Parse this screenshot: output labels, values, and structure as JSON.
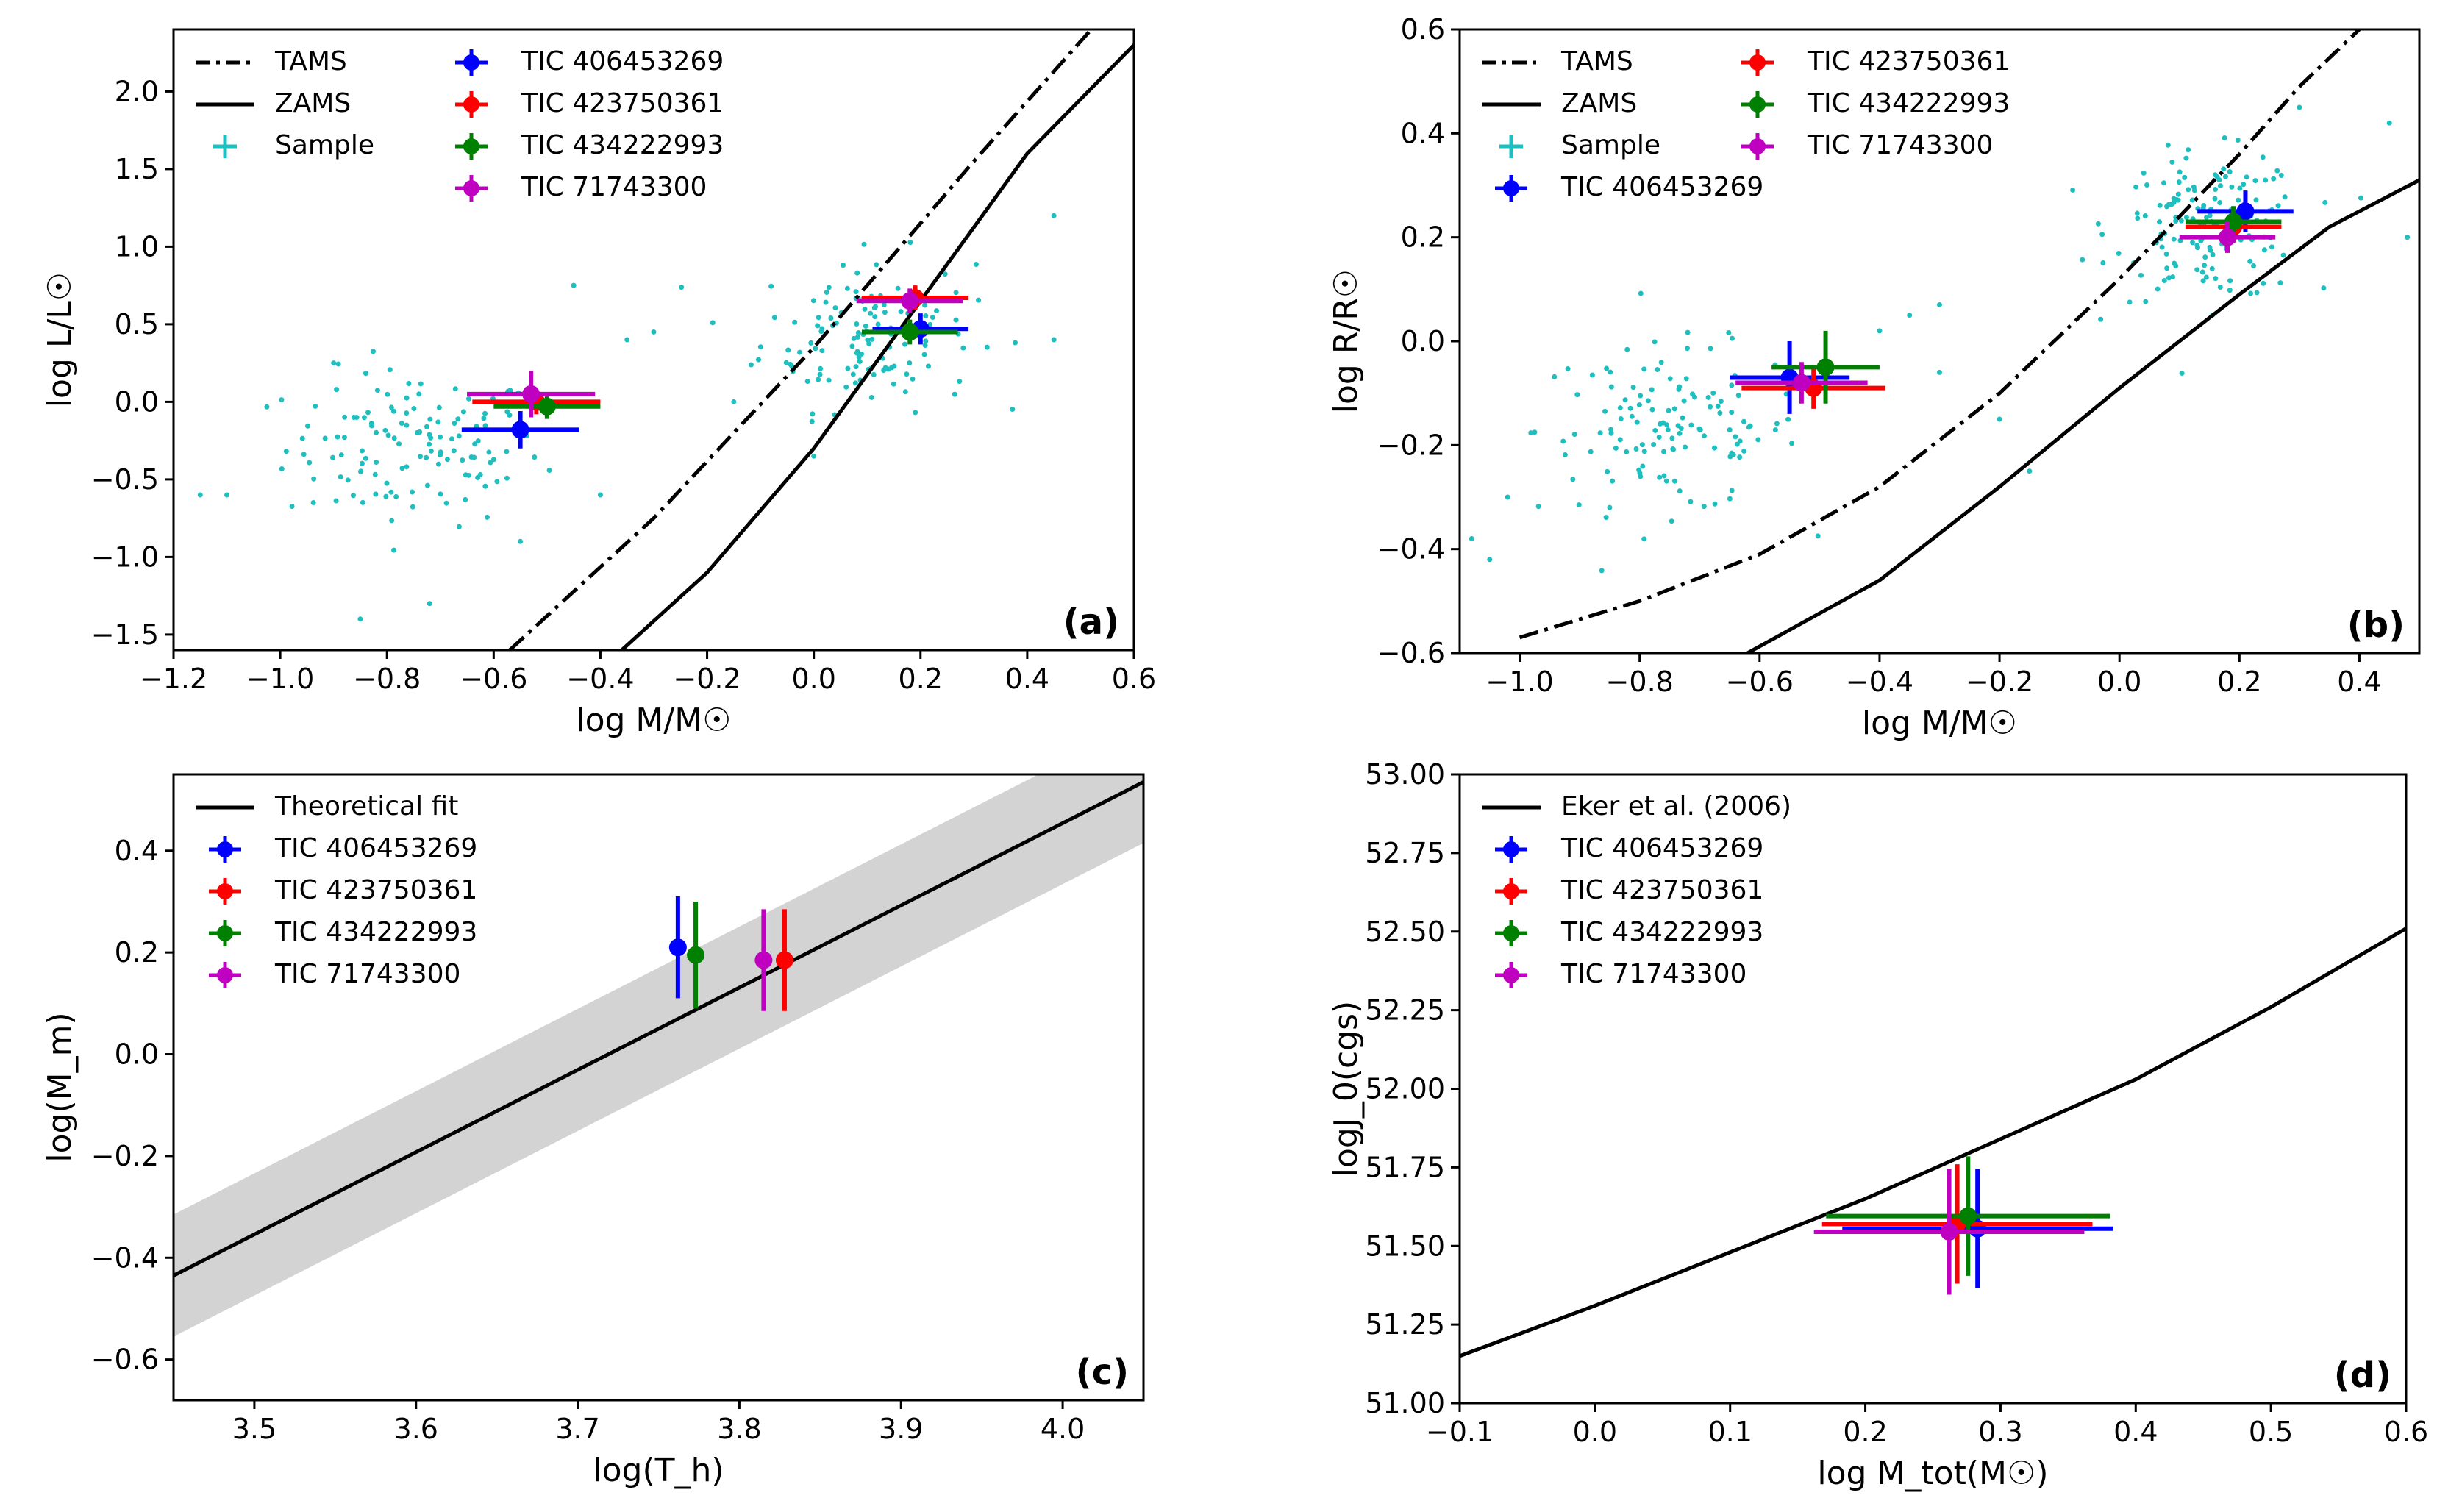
{
  "chart_data": [
    {
      "id": "a",
      "type": "scatter",
      "panel_label": "(a)",
      "xlabel": "log M/M☉",
      "ylabel": "log L/L☉",
      "xlim": [
        -1.2,
        0.6
      ],
      "ylim": [
        -1.6,
        2.4
      ],
      "xticks": [
        -1.2,
        -1.0,
        -0.8,
        -0.6,
        -0.4,
        -0.2,
        0.0,
        0.2,
        0.4,
        0.6
      ],
      "yticks": [
        -1.5,
        -1.0,
        -0.5,
        0.0,
        0.5,
        1.0,
        1.5,
        2.0
      ],
      "legend_position": "top-left",
      "lines": [
        {
          "name": "TAMS",
          "style": "dashdot",
          "x": [
            -0.57,
            -0.3,
            0.0,
            0.3,
            0.52
          ],
          "y": [
            -1.6,
            -0.75,
            0.35,
            1.55,
            2.4
          ]
        },
        {
          "name": "ZAMS",
          "style": "solid",
          "x": [
            -0.36,
            -0.2,
            0.0,
            0.2,
            0.4,
            0.6
          ],
          "y": [
            -1.6,
            -1.1,
            -0.3,
            0.65,
            1.6,
            2.3
          ]
        }
      ],
      "sample": {
        "name": "Sample",
        "groups": [
          {
            "cx": -0.75,
            "cy": -0.3,
            "sx": 0.12,
            "sy": 0.25,
            "n": 130
          },
          {
            "cx": 0.1,
            "cy": 0.45,
            "sx": 0.1,
            "sy": 0.25,
            "n": 130
          }
        ],
        "extra": [
          [
            -1.1,
            -0.6
          ],
          [
            -1.15,
            -0.6
          ],
          [
            -0.9,
            0.25
          ],
          [
            -0.35,
            0.4
          ],
          [
            -0.45,
            0.75
          ],
          [
            -0.3,
            0.45
          ],
          [
            -0.72,
            -1.3
          ],
          [
            -0.55,
            -0.9
          ],
          [
            -0.4,
            -0.6
          ],
          [
            0.45,
            1.2
          ],
          [
            0.45,
            0.4
          ],
          [
            0.0,
            -0.35
          ],
          [
            -0.15,
            0.0
          ],
          [
            -0.85,
            -1.4
          ]
        ]
      },
      "points": [
        {
          "name": "TIC 406453269",
          "color": "#0000ff",
          "x": -0.55,
          "y": -0.18,
          "xerr": 0.11,
          "yerr": 0.12
        },
        {
          "name": "TIC 423750361",
          "color": "#ff0000",
          "x": -0.52,
          "y": 0.0,
          "xerr": 0.12,
          "yerr": 0.08
        },
        {
          "name": "TIC 434222993",
          "color": "#008000",
          "x": -0.5,
          "y": -0.03,
          "xerr": 0.1,
          "yerr": 0.08
        },
        {
          "name": "TIC 71743300",
          "color": "#c000c0",
          "x": -0.53,
          "y": 0.05,
          "xerr": 0.12,
          "yerr": 0.15
        },
        {
          "name": "TIC 406453269",
          "color": "#0000ff",
          "x": 0.2,
          "y": 0.47,
          "xerr": 0.09,
          "yerr": 0.1
        },
        {
          "name": "TIC 423750361",
          "color": "#ff0000",
          "x": 0.19,
          "y": 0.67,
          "xerr": 0.1,
          "yerr": 0.08
        },
        {
          "name": "TIC 434222993",
          "color": "#008000",
          "x": 0.18,
          "y": 0.45,
          "xerr": 0.09,
          "yerr": 0.08
        },
        {
          "name": "TIC 71743300",
          "color": "#c000c0",
          "x": 0.18,
          "y": 0.65,
          "xerr": 0.1,
          "yerr": 0.08
        }
      ],
      "legend": [
        {
          "label": "TAMS",
          "kind": "dashdot"
        },
        {
          "label": "ZAMS",
          "kind": "solid"
        },
        {
          "label": "Sample",
          "kind": "cross",
          "color": "#20bfbf"
        },
        {
          "label": "TIC 406453269",
          "kind": "marker",
          "color": "#0000ff"
        },
        {
          "label": "TIC 423750361",
          "kind": "marker",
          "color": "#ff0000"
        },
        {
          "label": "TIC 434222993",
          "kind": "marker",
          "color": "#008000"
        },
        {
          "label": "TIC 71743300",
          "kind": "marker",
          "color": "#c000c0"
        }
      ]
    },
    {
      "id": "b",
      "type": "scatter",
      "panel_label": "(b)",
      "xlabel": "log M/M☉",
      "ylabel": "log R/R☉",
      "xlim": [
        -1.1,
        0.5
      ],
      "ylim": [
        -0.6,
        0.6
      ],
      "xticks": [
        -1.0,
        -0.8,
        -0.6,
        -0.4,
        -0.2,
        0.0,
        0.2,
        0.4
      ],
      "yticks": [
        -0.6,
        -0.4,
        -0.2,
        0.0,
        0.2,
        0.4,
        0.6
      ],
      "legend_position": "top-left",
      "lines": [
        {
          "name": "TAMS",
          "style": "dashdot",
          "x": [
            -1.0,
            -0.8,
            -0.6,
            -0.4,
            -0.2,
            0.0,
            0.2,
            0.3,
            0.4
          ],
          "y": [
            -0.57,
            -0.5,
            -0.41,
            -0.28,
            -0.1,
            0.12,
            0.36,
            0.49,
            0.6
          ]
        },
        {
          "name": "ZAMS",
          "style": "solid",
          "x": [
            -0.62,
            -0.4,
            -0.2,
            0.0,
            0.2,
            0.35,
            0.5
          ],
          "y": [
            -0.6,
            -0.46,
            -0.28,
            -0.09,
            0.09,
            0.22,
            0.31
          ]
        }
      ],
      "sample": {
        "name": "Sample",
        "groups": [
          {
            "cx": -0.75,
            "cy": -0.17,
            "sx": 0.11,
            "sy": 0.08,
            "n": 130
          },
          {
            "cx": 0.15,
            "cy": 0.22,
            "sx": 0.08,
            "sy": 0.07,
            "n": 150
          }
        ],
        "extra": [
          [
            -1.08,
            -0.38
          ],
          [
            -1.05,
            -0.42
          ],
          [
            -1.02,
            -0.3
          ],
          [
            -0.4,
            0.02
          ],
          [
            -0.35,
            0.05
          ],
          [
            -0.3,
            0.07
          ],
          [
            -0.2,
            -0.15
          ],
          [
            -0.3,
            -0.06
          ],
          [
            -0.15,
            -0.25
          ],
          [
            0.45,
            0.42
          ],
          [
            0.48,
            0.2
          ],
          [
            0.3,
            0.45
          ],
          [
            -0.85,
            -0.32
          ]
        ]
      },
      "points": [
        {
          "name": "TIC 406453269",
          "color": "#0000ff",
          "x": -0.55,
          "y": -0.07,
          "xerr": 0.1,
          "yerr": 0.07
        },
        {
          "name": "TIC 423750361",
          "color": "#ff0000",
          "x": -0.51,
          "y": -0.09,
          "xerr": 0.12,
          "yerr": 0.04
        },
        {
          "name": "TIC 434222993",
          "color": "#008000",
          "x": -0.49,
          "y": -0.05,
          "xerr": 0.09,
          "yerr": 0.07
        },
        {
          "name": "TIC 71743300",
          "color": "#c000c0",
          "x": -0.53,
          "y": -0.08,
          "xerr": 0.11,
          "yerr": 0.04
        },
        {
          "name": "TIC 406453269",
          "color": "#0000ff",
          "x": 0.21,
          "y": 0.25,
          "xerr": 0.08,
          "yerr": 0.04
        },
        {
          "name": "TIC 423750361",
          "color": "#ff0000",
          "x": 0.19,
          "y": 0.22,
          "xerr": 0.08,
          "yerr": 0.03
        },
        {
          "name": "TIC 434222993",
          "color": "#008000",
          "x": 0.19,
          "y": 0.23,
          "xerr": 0.08,
          "yerr": 0.03
        },
        {
          "name": "TIC 71743300",
          "color": "#c000c0",
          "x": 0.18,
          "y": 0.2,
          "xerr": 0.08,
          "yerr": 0.03
        }
      ],
      "legend": [
        {
          "label": "TAMS",
          "kind": "dashdot"
        },
        {
          "label": "ZAMS",
          "kind": "solid"
        },
        {
          "label": "Sample",
          "kind": "cross",
          "color": "#20bfbf"
        },
        {
          "label": "TIC 406453269",
          "kind": "marker",
          "color": "#0000ff"
        },
        {
          "label": "TIC 423750361",
          "kind": "marker",
          "color": "#ff0000"
        },
        {
          "label": "TIC 434222993",
          "kind": "marker",
          "color": "#008000"
        },
        {
          "label": "TIC 71743300",
          "kind": "marker",
          "color": "#c000c0"
        }
      ]
    },
    {
      "id": "c",
      "type": "scatter",
      "panel_label": "(c)",
      "xlabel": "log(T_h)",
      "ylabel": "log(M_m)",
      "xlim": [
        3.45,
        4.05
      ],
      "ylim": [
        -0.68,
        0.55
      ],
      "xticks": [
        3.5,
        3.6,
        3.7,
        3.8,
        3.9,
        4.0
      ],
      "yticks": [
        -0.6,
        -0.4,
        -0.2,
        0.0,
        0.2,
        0.4
      ],
      "legend_position": "top-left",
      "fit": {
        "name": "Theoretical fit",
        "x": [
          3.45,
          4.05
        ],
        "y": [
          -0.435,
          0.535
        ],
        "band": 0.12
      },
      "points": [
        {
          "name": "TIC 406453269",
          "color": "#0000ff",
          "x": 3.762,
          "y": 0.21,
          "yerr": 0.1
        },
        {
          "name": "TIC 423750361",
          "color": "#ff0000",
          "x": 3.828,
          "y": 0.185,
          "yerr": 0.1
        },
        {
          "name": "TIC 434222993",
          "color": "#008000",
          "x": 3.773,
          "y": 0.195,
          "yerr": 0.105
        },
        {
          "name": "TIC 71743300",
          "color": "#c000c0",
          "x": 3.815,
          "y": 0.185,
          "yerr": 0.1
        }
      ],
      "legend": [
        {
          "label": "Theoretical fit",
          "kind": "solid"
        },
        {
          "label": "TIC 406453269",
          "kind": "marker",
          "color": "#0000ff"
        },
        {
          "label": "TIC 423750361",
          "kind": "marker",
          "color": "#ff0000"
        },
        {
          "label": "TIC 434222993",
          "kind": "marker",
          "color": "#008000"
        },
        {
          "label": "TIC 71743300",
          "kind": "marker",
          "color": "#c000c0"
        }
      ]
    },
    {
      "id": "d",
      "type": "scatter",
      "panel_label": "(d)",
      "xlabel": "log M_tot(M☉)",
      "ylabel": "logJ_0(cgs)",
      "xlim": [
        -0.1,
        0.6
      ],
      "ylim": [
        51.0,
        53.0
      ],
      "xticks": [
        -0.1,
        0.0,
        0.1,
        0.2,
        0.3,
        0.4,
        0.5,
        0.6
      ],
      "yticks": [
        51.0,
        51.25,
        51.5,
        51.75,
        52.0,
        52.25,
        52.5,
        52.75,
        53.0
      ],
      "legend_position": "top-left",
      "lines": [
        {
          "name": "Eker et al. (2006)",
          "style": "solid",
          "x": [
            -0.1,
            0.0,
            0.1,
            0.2,
            0.3,
            0.4,
            0.5,
            0.6
          ],
          "y": [
            51.15,
            51.31,
            51.48,
            51.65,
            51.84,
            52.03,
            52.26,
            52.51
          ]
        }
      ],
      "points": [
        {
          "name": "TIC 406453269",
          "color": "#0000ff",
          "x": 0.283,
          "y": 51.555,
          "xerr": 0.1,
          "yerr": 0.19
        },
        {
          "name": "TIC 423750361",
          "color": "#ff0000",
          "x": 0.268,
          "y": 51.57,
          "xerr": 0.1,
          "yerr": 0.19
        },
        {
          "name": "TIC 434222993",
          "color": "#008000",
          "x": 0.276,
          "y": 51.595,
          "xerr": 0.105,
          "yerr": 0.19
        },
        {
          "name": "TIC 71743300",
          "color": "#c000c0",
          "x": 0.262,
          "y": 51.545,
          "xerr": 0.1,
          "yerr": 0.2
        }
      ],
      "legend": [
        {
          "label": "Eker et al. (2006)",
          "kind": "solid"
        },
        {
          "label": "TIC 406453269",
          "kind": "marker",
          "color": "#0000ff"
        },
        {
          "label": "TIC 423750361",
          "kind": "marker",
          "color": "#ff0000"
        },
        {
          "label": "TIC 434222993",
          "kind": "marker",
          "color": "#008000"
        },
        {
          "label": "TIC 71743300",
          "kind": "marker",
          "color": "#c000c0"
        }
      ]
    }
  ]
}
